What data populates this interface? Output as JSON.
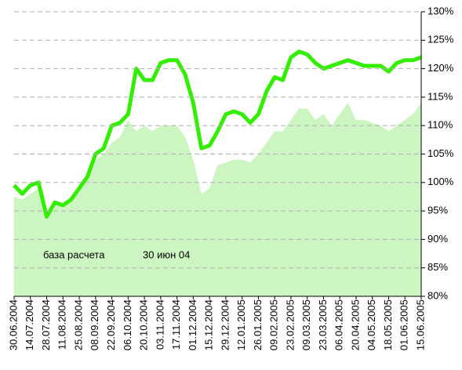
{
  "chart_data": {
    "type": "line",
    "categories": [
      "30.06.2004",
      null,
      "14.07.2004",
      null,
      "28.07.2004",
      null,
      "11.08.2004",
      null,
      "25.08.2004",
      null,
      "08.09.2004",
      null,
      "22.09.2004",
      null,
      "06.10.2004",
      null,
      "20.10.2004",
      null,
      "03.11.2004",
      null,
      "17.11.2004",
      null,
      "01.12.2004",
      null,
      "15.12.2004",
      null,
      "29.12.2004",
      null,
      "12.01.2005",
      null,
      "26.01.2005",
      null,
      "09.02.2005",
      null,
      "23.02.2005",
      null,
      "09.03.2005",
      null,
      "23.03.2005",
      null,
      "06.04.2005",
      null,
      "20.04.2005",
      null,
      "04.05.2005",
      null,
      "18.05.2005",
      null,
      "01.06.2005",
      null,
      "15.06.2005"
    ],
    "series": [
      {
        "kind": "area",
        "color": "#ccf5c2",
        "values": [
          97.5,
          97,
          98,
          99,
          95,
          96,
          96,
          97,
          99,
          101,
          104,
          105,
          107,
          108,
          111,
          109,
          110,
          109,
          110,
          110,
          110,
          108,
          104,
          98,
          99,
          103,
          103.5,
          104,
          104,
          103.5,
          105,
          107,
          109,
          109,
          111,
          113,
          113,
          111,
          112,
          110,
          112,
          114,
          111,
          111,
          110.5,
          110,
          109,
          110,
          111,
          112,
          114
        ]
      },
      {
        "kind": "line",
        "color": "#33ee00",
        "values": [
          99.5,
          98,
          99.5,
          100,
          94,
          96.5,
          96,
          97,
          99,
          101,
          105,
          106,
          110,
          110.5,
          112,
          120,
          118,
          118,
          121,
          121.5,
          121.5,
          119,
          114,
          106,
          106.5,
          109,
          112,
          112.5,
          112,
          110.5,
          112,
          116,
          118.5,
          118,
          122,
          123,
          122.5,
          121,
          120,
          120.5,
          121,
          121.5,
          121,
          120.5,
          120.5,
          120.5,
          119.5,
          121,
          121.5,
          121.5,
          122
        ]
      }
    ],
    "ylim": [
      80,
      130
    ],
    "yticks": [
      {
        "value": 80,
        "label": "80%"
      },
      {
        "value": 85,
        "label": "85%"
      },
      {
        "value": 90,
        "label": "90%"
      },
      {
        "value": 95,
        "label": "95%"
      },
      {
        "value": 100,
        "label": "100%"
      },
      {
        "value": 105,
        "label": "105%"
      },
      {
        "value": 110,
        "label": "110%"
      },
      {
        "value": 115,
        "label": "115%"
      },
      {
        "value": 120,
        "label": "120%"
      },
      {
        "value": 125,
        "label": "125%"
      },
      {
        "value": 130,
        "label": "130%"
      }
    ],
    "grid": true,
    "annotations": [
      "база расчета",
      "30 июн 04"
    ]
  }
}
